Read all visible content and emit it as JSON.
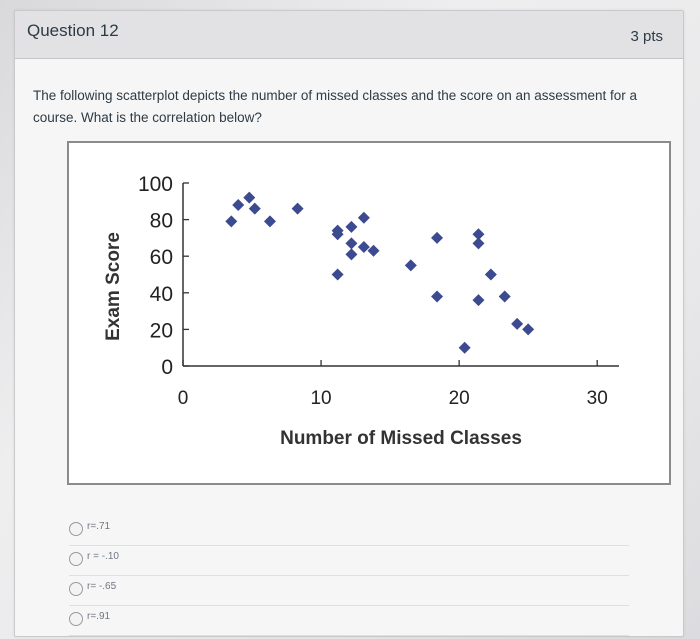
{
  "question": {
    "title": "Question 12",
    "points": "3 pts",
    "text": "The following scatterplot depicts the number of missed classes and the score on an assessment for a course. What is the correlation below?"
  },
  "answers": [
    {
      "label": "r=.71"
    },
    {
      "label": "r = -.10"
    },
    {
      "label": "r= -.65"
    },
    {
      "label": "r=.91"
    }
  ],
  "chart_data": {
    "type": "scatter",
    "xlabel": "Number of Missed Classes",
    "ylabel": "Exam Score",
    "xlim": [
      0,
      30
    ],
    "ylim": [
      0,
      100
    ],
    "x_ticks": [
      "0",
      "10",
      "20",
      "30"
    ],
    "y_ticks": [
      "0",
      "20",
      "40",
      "60",
      "80",
      "100"
    ],
    "marker_color": "#3c4a8f",
    "points": [
      {
        "x": 4.0,
        "y": 88
      },
      {
        "x": 4.8,
        "y": 92
      },
      {
        "x": 5.2,
        "y": 86
      },
      {
        "x": 3.5,
        "y": 79
      },
      {
        "x": 6.3,
        "y": 79
      },
      {
        "x": 8.3,
        "y": 86
      },
      {
        "x": 11.2,
        "y": 74
      },
      {
        "x": 11.2,
        "y": 72
      },
      {
        "x": 12.2,
        "y": 76
      },
      {
        "x": 13.1,
        "y": 81
      },
      {
        "x": 12.2,
        "y": 67
      },
      {
        "x": 13.1,
        "y": 65
      },
      {
        "x": 12.2,
        "y": 61
      },
      {
        "x": 13.8,
        "y": 63
      },
      {
        "x": 11.2,
        "y": 50
      },
      {
        "x": 16.5,
        "y": 55
      },
      {
        "x": 18.4,
        "y": 70
      },
      {
        "x": 21.4,
        "y": 72
      },
      {
        "x": 21.4,
        "y": 67
      },
      {
        "x": 22.3,
        "y": 50
      },
      {
        "x": 18.4,
        "y": 38
      },
      {
        "x": 21.4,
        "y": 36
      },
      {
        "x": 23.3,
        "y": 38
      },
      {
        "x": 24.2,
        "y": 23
      },
      {
        "x": 25.0,
        "y": 20
      },
      {
        "x": 20.4,
        "y": 10
      }
    ]
  }
}
